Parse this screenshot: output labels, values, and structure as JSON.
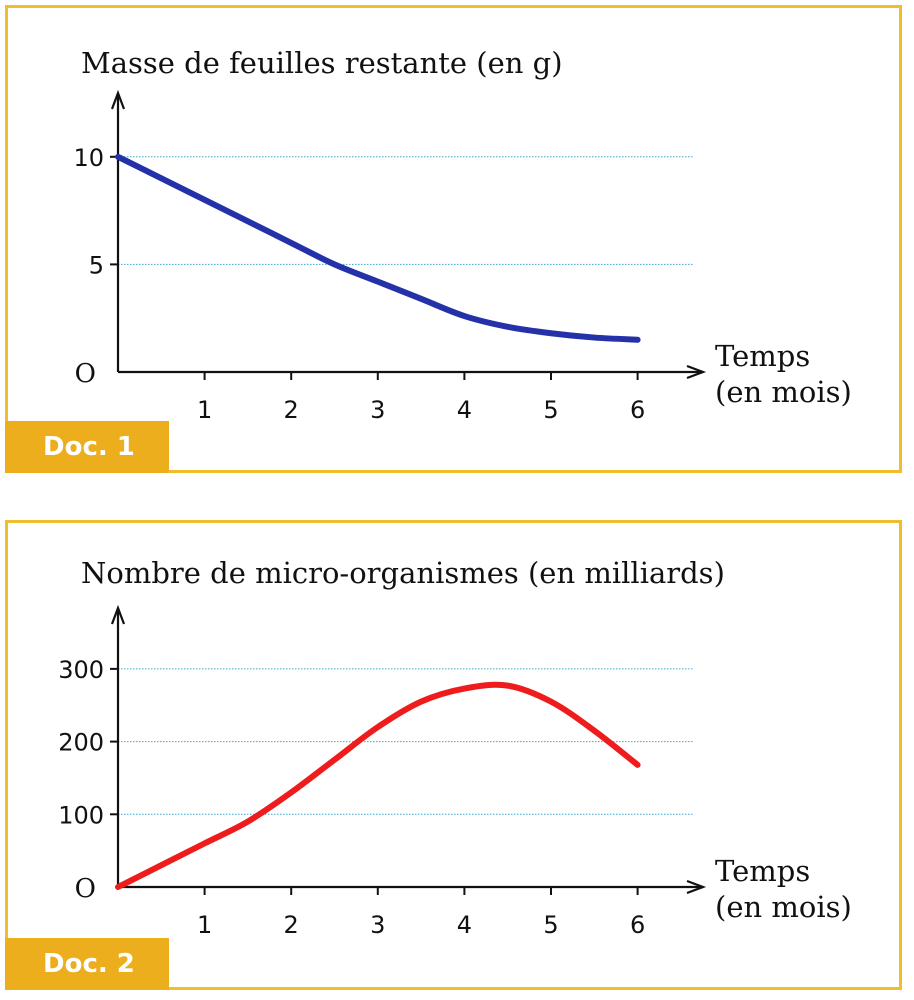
{
  "chart_data": [
    {
      "type": "line",
      "doc_label": "Doc. 1",
      "title": "Masse de feuilles restante (en g)",
      "xlabel": [
        "Temps",
        "(en mois)"
      ],
      "origin_label": "O",
      "x_ticks": [
        "1",
        "2",
        "3",
        "4",
        "5",
        "6"
      ],
      "y_ticks": [
        "5",
        "10"
      ],
      "y_tick_values": [
        5,
        10
      ],
      "xlim": [
        0,
        6.8
      ],
      "ylim": [
        0,
        12.5
      ],
      "grid": "horizontal dotted",
      "line_color": "#2531a8",
      "series": [
        {
          "x": [
            0,
            0.5,
            1,
            1.5,
            2,
            2.5,
            3,
            3.5,
            4,
            4.5,
            5,
            5.5,
            6
          ],
          "y": [
            10,
            9,
            8,
            7,
            6,
            5,
            4.2,
            3.4,
            2.6,
            2.1,
            1.8,
            1.6,
            1.5
          ]
        }
      ]
    },
    {
      "type": "line",
      "doc_label": "Doc. 2",
      "title": "Nombre de micro-organismes (en milliards)",
      "xlabel": [
        "Temps",
        "(en mois)"
      ],
      "origin_label": "O",
      "x_ticks": [
        "1",
        "2",
        "3",
        "4",
        "5",
        "6"
      ],
      "y_ticks": [
        "100",
        "200",
        "300"
      ],
      "y_tick_values": [
        100,
        200,
        300
      ],
      "xlim": [
        0,
        6.8
      ],
      "ylim": [
        0,
        370
      ],
      "grid": "horizontal dotted",
      "line_color": "#ee1c1c",
      "series": [
        {
          "x": [
            0,
            0.5,
            1,
            1.5,
            2,
            2.5,
            3,
            3.5,
            4,
            4.5,
            5,
            5.5,
            6
          ],
          "y": [
            0,
            30,
            60,
            90,
            130,
            175,
            220,
            255,
            273,
            277,
            255,
            215,
            168
          ]
        }
      ]
    }
  ]
}
